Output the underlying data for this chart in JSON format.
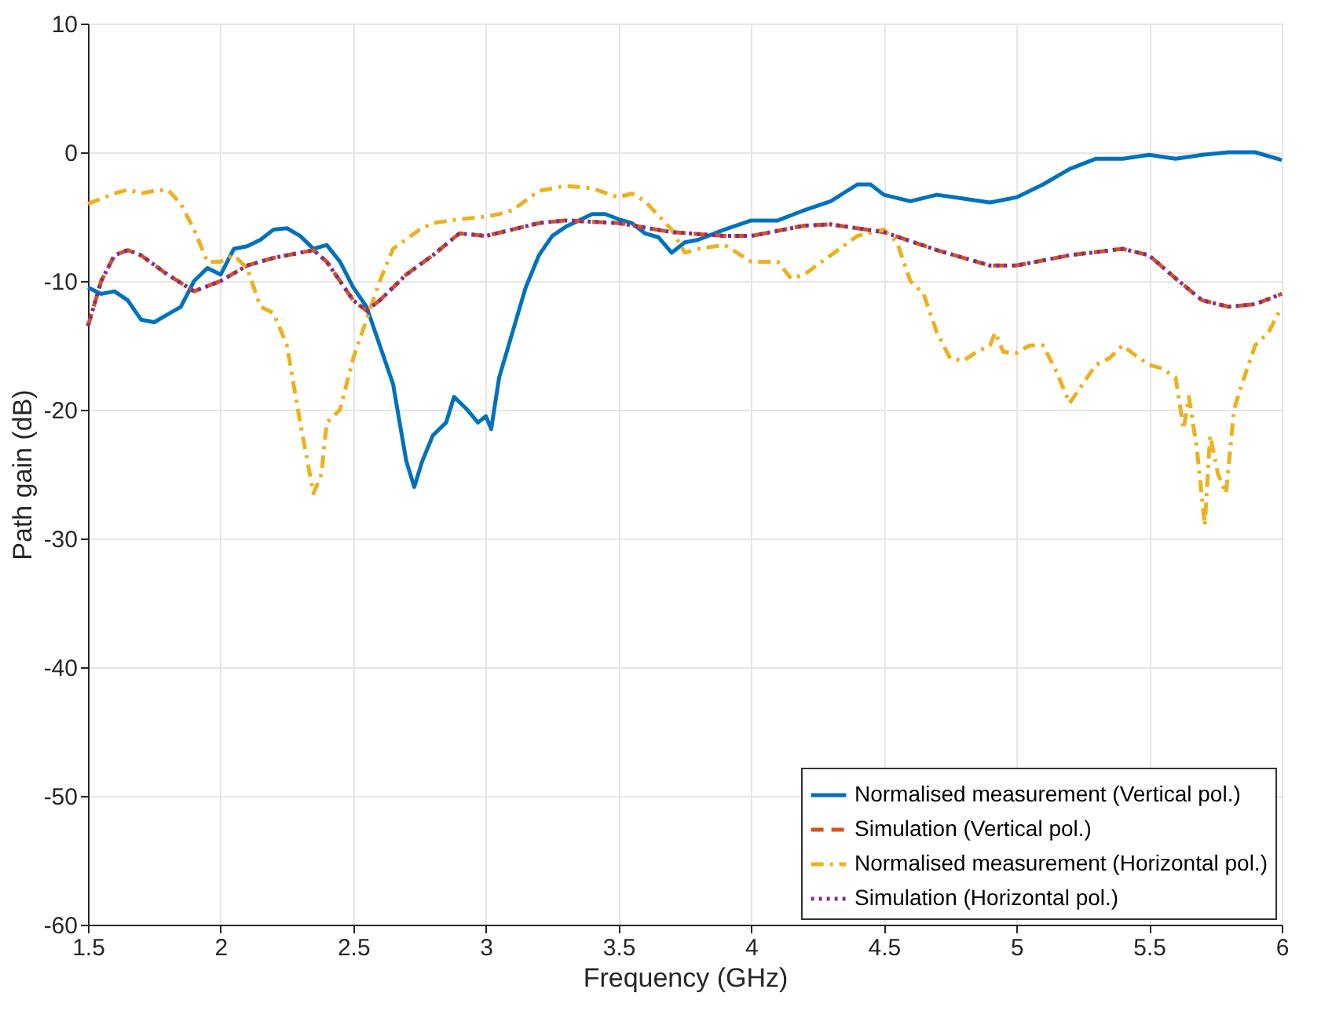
{
  "chart_data": {
    "type": "line",
    "xlabel": "Frequency (GHz)",
    "ylabel": "Path gain (dB)",
    "xlim": [
      1.5,
      6
    ],
    "ylim": [
      -60,
      10
    ],
    "xticks": [
      1.5,
      2,
      2.5,
      3,
      3.5,
      4,
      4.5,
      5,
      5.5,
      6
    ],
    "yticks": [
      -60,
      -50,
      -40,
      -30,
      -20,
      -10,
      0,
      10
    ],
    "grid": true,
    "legend": "bottom right",
    "marker": "none",
    "series": [
      {
        "name": "Normalised measurement (Vertical pol.)",
        "color": "#0072bd",
        "line_style": "solid",
        "x": [
          1.5,
          1.55,
          1.6,
          1.65,
          1.7,
          1.75,
          1.8,
          1.85,
          1.9,
          1.95,
          2.0,
          2.05,
          2.1,
          2.15,
          2.2,
          2.25,
          2.3,
          2.35,
          2.4,
          2.45,
          2.5,
          2.55,
          2.6,
          2.65,
          2.7,
          2.73,
          2.76,
          2.8,
          2.85,
          2.88,
          2.93,
          2.97,
          3.0,
          3.02,
          3.05,
          3.1,
          3.15,
          3.2,
          3.25,
          3.3,
          3.35,
          3.4,
          3.45,
          3.5,
          3.55,
          3.6,
          3.65,
          3.7,
          3.75,
          3.8,
          3.9,
          4.0,
          4.1,
          4.2,
          4.3,
          4.4,
          4.45,
          4.5,
          4.6,
          4.7,
          4.8,
          4.9,
          5.0,
          5.1,
          5.2,
          5.3,
          5.4,
          5.5,
          5.6,
          5.7,
          5.8,
          5.9,
          6.0
        ],
        "values": [
          -10.5,
          -11,
          -10.8,
          -11.5,
          -13,
          -13.2,
          -12.6,
          -12,
          -10,
          -9,
          -9.5,
          -7.5,
          -7.3,
          -6.8,
          -6,
          -5.9,
          -6.5,
          -7.5,
          -7.2,
          -8.5,
          -10.5,
          -12,
          -15,
          -18,
          -24,
          -26,
          -24,
          -22,
          -21,
          -19,
          -20,
          -21,
          -20.5,
          -21.5,
          -17.5,
          -14,
          -10.5,
          -8,
          -6.5,
          -5.8,
          -5.3,
          -4.8,
          -4.8,
          -5.2,
          -5.5,
          -6.3,
          -6.6,
          -7.8,
          -7,
          -6.8,
          -6,
          -5.3,
          -5.3,
          -4.5,
          -3.8,
          -2.5,
          -2.5,
          -3.3,
          -3.8,
          -3.3,
          -3.6,
          -3.9,
          -3.5,
          -2.5,
          -1.3,
          -0.5,
          -0.5,
          -0.2,
          -0.5,
          -0.2,
          0,
          0,
          -0.6
        ]
      },
      {
        "name": "Simulation (Vertical pol.)",
        "color": "#d95319",
        "line_style": "dashed",
        "x": [
          1.5,
          1.55,
          1.6,
          1.65,
          1.7,
          1.8,
          1.9,
          2.0,
          2.1,
          2.2,
          2.3,
          2.35,
          2.4,
          2.5,
          2.55,
          2.6,
          2.7,
          2.8,
          2.9,
          3.0,
          3.1,
          3.2,
          3.3,
          3.5,
          3.7,
          3.9,
          4.0,
          4.2,
          4.3,
          4.5,
          4.7,
          4.9,
          5.0,
          5.2,
          5.4,
          5.5,
          5.6,
          5.7,
          5.8,
          5.9,
          6.0
        ],
        "values": [
          -13.5,
          -10,
          -8,
          -7.6,
          -8,
          -9.5,
          -10.8,
          -10,
          -8.8,
          -8.2,
          -7.8,
          -7.6,
          -8.5,
          -11.5,
          -12.3,
          -11.5,
          -9.5,
          -8,
          -6.3,
          -6.5,
          -6,
          -5.5,
          -5.3,
          -5.5,
          -6.2,
          -6.5,
          -6.5,
          -5.7,
          -5.6,
          -6.2,
          -7.6,
          -8.8,
          -8.8,
          -8,
          -7.5,
          -8,
          -9.8,
          -11.5,
          -12,
          -11.8,
          -11
        ]
      },
      {
        "name": "Normalised measurement (Horizontal pol.)",
        "color": "#edb120",
        "line_style": "dashdot",
        "x": [
          1.5,
          1.6,
          1.65,
          1.7,
          1.75,
          1.8,
          1.85,
          1.9,
          1.95,
          2.0,
          2.05,
          2.1,
          2.15,
          2.2,
          2.25,
          2.3,
          2.35,
          2.38,
          2.4,
          2.45,
          2.5,
          2.55,
          2.6,
          2.65,
          2.75,
          2.8,
          2.9,
          3.0,
          3.05,
          3.1,
          3.2,
          3.3,
          3.4,
          3.5,
          3.55,
          3.6,
          3.7,
          3.75,
          3.8,
          3.9,
          4.0,
          4.1,
          4.15,
          4.2,
          4.3,
          4.4,
          4.5,
          4.55,
          4.6,
          4.65,
          4.7,
          4.75,
          4.8,
          4.85,
          4.9,
          4.92,
          4.95,
          5.0,
          5.05,
          5.1,
          5.15,
          5.2,
          5.25,
          5.3,
          5.35,
          5.4,
          5.45,
          5.5,
          5.55,
          5.6,
          5.63,
          5.65,
          5.68,
          5.71,
          5.73,
          5.76,
          5.79,
          5.82,
          5.85,
          5.9,
          5.95,
          6.0
        ],
        "values": [
          -4,
          -3.2,
          -2.9,
          -3.2,
          -3,
          -2.9,
          -4,
          -6,
          -8.5,
          -8.5,
          -8,
          -9,
          -12,
          -12.5,
          -15,
          -21,
          -26.5,
          -25,
          -21,
          -20,
          -16,
          -13,
          -10,
          -7.5,
          -6,
          -5.5,
          -5.2,
          -5,
          -4.8,
          -4.5,
          -3,
          -2.6,
          -2.8,
          -3.5,
          -3.2,
          -3.8,
          -6,
          -7.8,
          -7.5,
          -7.2,
          -8.5,
          -8.5,
          -9.8,
          -9.5,
          -8,
          -6.5,
          -6,
          -7,
          -10,
          -11,
          -14,
          -16,
          -16.2,
          -15.5,
          -15,
          -14,
          -15.5,
          -15.6,
          -15,
          -15,
          -17,
          -19.5,
          -18,
          -16.5,
          -16,
          -15,
          -15.8,
          -16.5,
          -16.8,
          -17.5,
          -21.5,
          -19,
          -23,
          -29,
          -22,
          -25,
          -26.5,
          -20,
          -18,
          -15,
          -14,
          -12
        ]
      },
      {
        "name": "Simulation (Horizontal pol.)",
        "color": "#7e2f8e",
        "line_style": "dotted",
        "x": [
          1.5,
          1.55,
          1.6,
          1.65,
          1.7,
          1.8,
          1.9,
          2.0,
          2.1,
          2.2,
          2.3,
          2.35,
          2.4,
          2.5,
          2.55,
          2.6,
          2.7,
          2.8,
          2.9,
          3.0,
          3.1,
          3.2,
          3.3,
          3.5,
          3.7,
          3.9,
          4.0,
          4.2,
          4.3,
          4.5,
          4.7,
          4.9,
          5.0,
          5.2,
          5.4,
          5.5,
          5.6,
          5.7,
          5.8,
          5.9,
          6.0
        ],
        "values": [
          -13.5,
          -10,
          -8,
          -7.6,
          -8,
          -9.5,
          -10.8,
          -10,
          -8.8,
          -8.2,
          -7.8,
          -7.6,
          -8.5,
          -11.5,
          -12.3,
          -11.5,
          -9.5,
          -8,
          -6.3,
          -6.5,
          -6,
          -5.5,
          -5.3,
          -5.5,
          -6.2,
          -6.5,
          -6.5,
          -5.7,
          -5.6,
          -6.2,
          -7.6,
          -8.8,
          -8.8,
          -8,
          -7.5,
          -8,
          -9.8,
          -11.5,
          -12,
          -11.8,
          -11
        ]
      }
    ]
  }
}
